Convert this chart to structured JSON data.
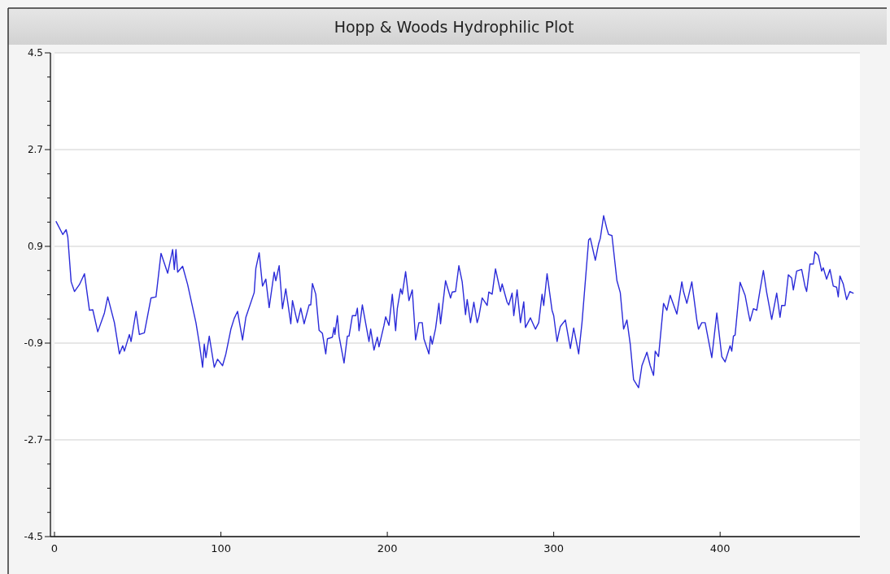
{
  "chart_data": {
    "type": "line",
    "title": "Hopp & Woods Hydrophilic Plot",
    "xlim": [
      0,
      484
    ],
    "xticks": [
      0,
      100,
      200,
      300,
      400
    ],
    "ylim": [
      -4.5,
      4.5
    ],
    "yticks": [
      -4.5,
      {
        "value": -4.05,
        "label": null
      },
      {
        "value": -3.6,
        "label": null
      },
      {
        "value": -3.15,
        "label": null
      },
      -2.7,
      {
        "value": -2.25,
        "label": null
      },
      {
        "value": -1.8,
        "label": null
      },
      {
        "value": -1.35,
        "label": null
      },
      -0.9,
      {
        "value": -0.45,
        "label": null
      },
      {
        "value": 0,
        "label": null
      },
      {
        "value": 0.45,
        "label": null
      },
      0.9,
      {
        "value": 1.35,
        "label": null
      },
      {
        "value": 1.8,
        "label": null
      },
      {
        "value": 2.25,
        "label": null
      },
      2.7,
      {
        "value": 3.15,
        "label": null
      },
      {
        "value": 3.6,
        "label": null
      },
      {
        "value": 4.05,
        "label": null
      },
      4.5
    ],
    "grid": "y",
    "marker": "none",
    "line_style": "solid",
    "x": [
      1,
      5,
      7,
      8,
      10,
      12,
      15,
      18,
      21,
      23,
      26,
      30,
      32,
      36,
      39,
      41,
      42,
      45,
      46,
      49,
      51,
      54,
      58,
      61,
      64,
      68,
      71,
      72,
      73,
      74,
      77,
      80,
      85,
      87,
      89,
      90,
      91,
      93,
      96,
      98,
      101,
      103,
      106,
      108,
      110,
      113,
      115,
      120,
      121,
      123,
      125,
      127,
      129,
      132,
      133,
      135,
      137,
      139,
      142,
      143,
      146,
      148,
      150,
      153,
      154,
      155,
      157,
      159,
      161,
      163,
      164,
      167,
      168,
      168.5,
      170,
      171,
      174,
      176,
      177,
      179,
      181,
      182,
      183,
      185,
      189,
      190,
      192,
      194,
      195,
      198,
      199,
      201,
      203,
      205,
      206,
      208,
      209,
      211,
      213,
      215,
      217,
      219,
      221,
      222,
      225,
      226,
      227,
      229,
      231,
      232,
      235,
      238,
      239,
      241,
      243,
      245,
      247,
      248,
      250,
      252,
      254,
      255,
      257,
      260,
      261,
      263,
      265,
      268,
      269,
      272,
      273,
      275,
      276,
      278,
      280,
      282,
      283,
      286,
      289,
      291,
      293,
      294,
      296,
      299,
      300,
      302,
      303,
      304,
      307,
      310,
      312,
      315,
      317,
      321,
      322,
      325,
      327,
      328,
      330,
      332,
      333,
      335,
      338,
      340,
      342,
      344,
      346,
      348,
      351,
      353,
      356,
      358,
      360,
      361,
      363,
      366,
      368,
      370,
      374,
      377,
      378,
      380,
      383,
      386,
      387,
      389,
      391,
      395,
      398,
      401,
      403,
      406,
      407,
      408,
      409,
      412,
      415,
      417,
      418,
      420,
      422,
      424,
      426,
      428,
      431,
      434,
      436,
      437,
      439,
      441,
      443,
      444,
      446,
      449,
      451,
      452,
      454,
      456,
      457,
      459,
      461,
      462,
      464,
      466,
      468,
      470,
      471,
      472,
      474,
      476,
      478,
      480
    ],
    "series": [
      {
        "color": "#2b2bd9",
        "values": [
          1.36,
          1.12,
          1.21,
          1.07,
          0.24,
          0.06,
          0.19,
          0.39,
          -0.29,
          -0.28,
          -0.69,
          -0.34,
          -0.04,
          -0.52,
          -1.1,
          -0.95,
          -1.05,
          -0.74,
          -0.87,
          -0.31,
          -0.74,
          -0.71,
          -0.06,
          -0.04,
          0.77,
          0.4,
          0.84,
          0.47,
          0.84,
          0.42,
          0.53,
          0.19,
          -0.52,
          -0.9,
          -1.35,
          -0.92,
          -1.17,
          -0.77,
          -1.35,
          -1.2,
          -1.32,
          -1.1,
          -0.64,
          -0.44,
          -0.31,
          -0.84,
          -0.42,
          0.04,
          0.49,
          0.78,
          0.16,
          0.29,
          -0.24,
          0.42,
          0.26,
          0.54,
          -0.26,
          0.11,
          -0.54,
          -0.11,
          -0.52,
          -0.25,
          -0.54,
          -0.19,
          -0.19,
          0.21,
          0.01,
          -0.66,
          -0.72,
          -1.1,
          -0.82,
          -0.79,
          -0.61,
          -0.74,
          -0.39,
          -0.77,
          -1.27,
          -0.77,
          -0.77,
          -0.39,
          -0.39,
          -0.25,
          -0.67,
          -0.19,
          -0.87,
          -0.64,
          -1.03,
          -0.79,
          -0.97,
          -0.57,
          -0.41,
          -0.57,
          0.01,
          -0.67,
          -0.26,
          0.11,
          0.01,
          0.43,
          -0.11,
          0.09,
          -0.84,
          -0.52,
          -0.52,
          -0.82,
          -1.1,
          -0.77,
          -0.92,
          -0.63,
          -0.16,
          -0.54,
          0.26,
          -0.06,
          0.05,
          0.06,
          0.54,
          0.24,
          -0.37,
          -0.09,
          -0.52,
          -0.14,
          -0.52,
          -0.41,
          -0.06,
          -0.2,
          0.05,
          0.01,
          0.48,
          0.06,
          0.2,
          -0.14,
          -0.19,
          0.03,
          -0.39,
          0.09,
          -0.52,
          -0.13,
          -0.61,
          -0.43,
          -0.64,
          -0.52,
          0.01,
          -0.2,
          0.39,
          -0.29,
          -0.39,
          -0.87,
          -0.72,
          -0.59,
          -0.47,
          -1.0,
          -0.62,
          -1.1,
          -0.52,
          1.02,
          1.05,
          0.64,
          0.95,
          1.05,
          1.47,
          1.22,
          1.12,
          1.1,
          0.26,
          0.04,
          -0.64,
          -0.47,
          -0.92,
          -1.58,
          -1.73,
          -1.32,
          -1.07,
          -1.32,
          -1.5,
          -1.05,
          -1.15,
          -0.16,
          -0.29,
          -0.01,
          -0.36,
          0.24,
          0.06,
          -0.16,
          0.24,
          -0.47,
          -0.64,
          -0.52,
          -0.52,
          -1.17,
          -0.34,
          -1.15,
          -1.25,
          -0.95,
          -1.05,
          -0.77,
          -0.75,
          0.23,
          -0.01,
          -0.34,
          -0.49,
          -0.26,
          -0.29,
          0.09,
          0.45,
          0.04,
          -0.46,
          0.03,
          -0.42,
          -0.2,
          -0.2,
          0.37,
          0.31,
          0.09,
          0.44,
          0.47,
          0.16,
          0.06,
          0.57,
          0.57,
          0.8,
          0.73,
          0.44,
          0.5,
          0.29,
          0.47,
          0.16,
          0.14,
          -0.04,
          0.35,
          0.2,
          -0.09,
          0.06,
          0.03
        ]
      }
    ]
  }
}
